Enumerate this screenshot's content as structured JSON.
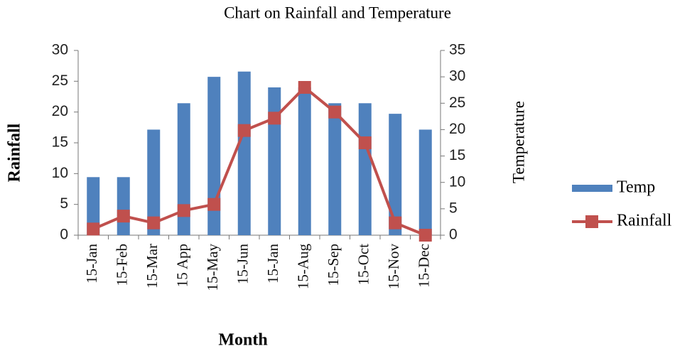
{
  "chart_data": {
    "type": "bar_line",
    "title": "Chart on Rainfall and Temperature",
    "x_label": "Month",
    "y_label": "Rainfall",
    "y2_label": "Temperature",
    "categories": [
      "15-Jan",
      "15-Feb",
      "15-Mar",
      "15 App",
      "15-May",
      "15-Jun",
      "15-Jan",
      "15-Aug",
      "15-Sep",
      "15-Oct",
      "15-Nov",
      "15-Dec"
    ],
    "series": [
      {
        "name": "Temp",
        "type": "bar",
        "axis": "y2",
        "color": "#4f81bd",
        "values": [
          11,
          11,
          20,
          25,
          30,
          31,
          28,
          28,
          25,
          25,
          23,
          20
        ]
      },
      {
        "name": "Rainfall",
        "type": "line",
        "axis": "y",
        "color": "#c0504d",
        "values": [
          1,
          3.1,
          2,
          4,
          5,
          17,
          19,
          24,
          20,
          15,
          2,
          0
        ]
      }
    ],
    "ylim": [
      0,
      30
    ],
    "yticks": [
      0,
      5,
      10,
      15,
      20,
      25,
      30
    ],
    "y2lim": [
      0,
      35
    ],
    "y2ticks": [
      0,
      5,
      10,
      15,
      20,
      25,
      30,
      35
    ],
    "legend": "right"
  }
}
